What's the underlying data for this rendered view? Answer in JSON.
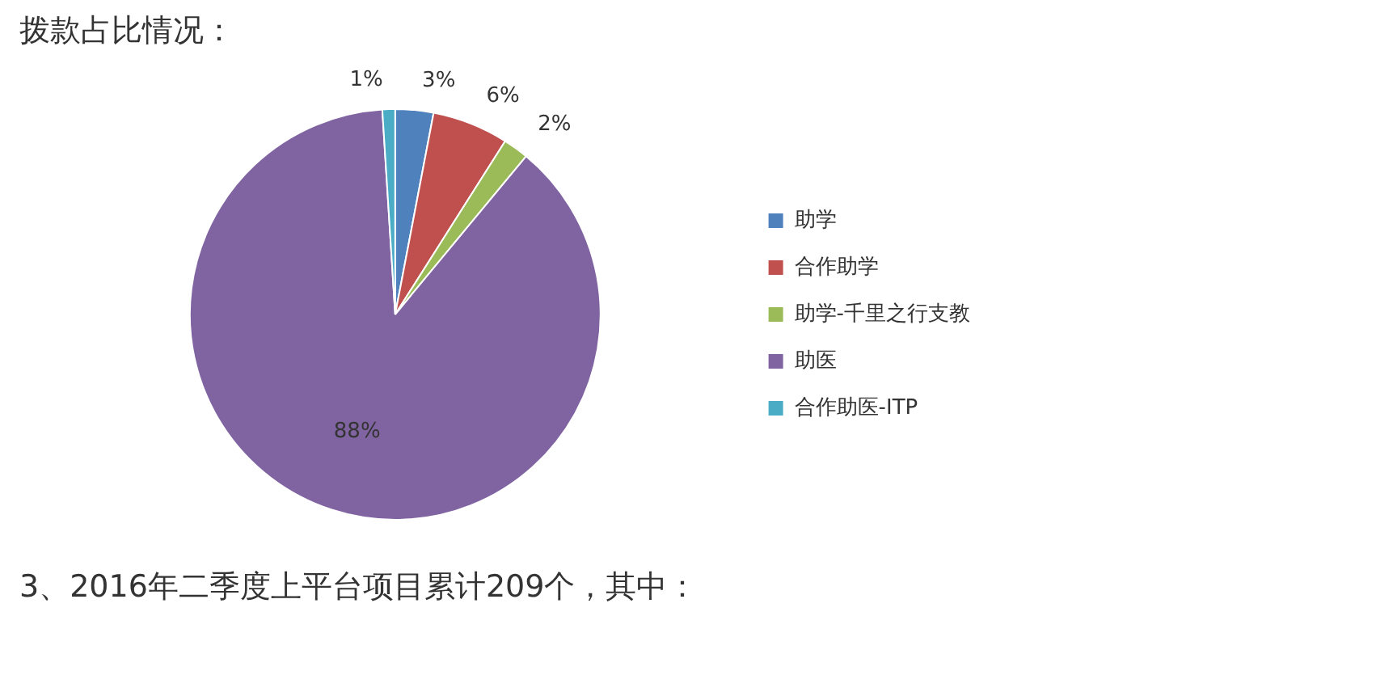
{
  "chart_data": {
    "type": "pie",
    "title": "拨款占比情况：",
    "categories": [
      "助学",
      "合作助学",
      "助学-千里之行支教",
      "助医",
      "合作助医-ITP"
    ],
    "values": [
      3,
      6,
      2,
      88,
      1
    ],
    "colors": [
      "#4f81bd",
      "#c0504d",
      "#9bbb59",
      "#8064a2",
      "#4bacc6"
    ],
    "value_labels": [
      "3%",
      "6%",
      "2%",
      "88%",
      "1%"
    ],
    "legend": "right",
    "annotations": [
      "3、2016年二季度上平台项目累计209个，其中："
    ]
  }
}
